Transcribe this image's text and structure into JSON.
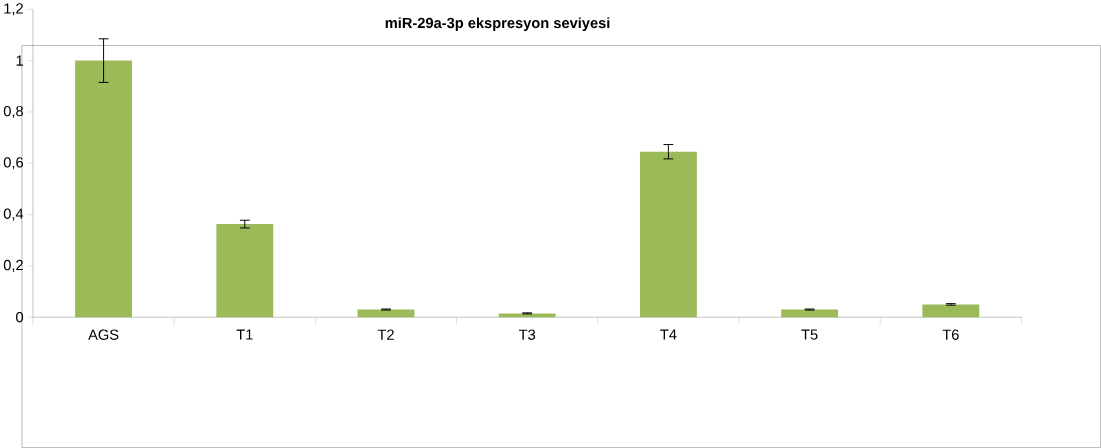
{
  "chart_data": {
    "type": "bar",
    "title": "miR-29a-3p  ekspresyon seviyesi",
    "categories": [
      "AGS",
      "T1",
      "T2",
      "T3",
      "T4",
      "T5",
      "T6"
    ],
    "values": [
      1.0,
      0.363,
      0.03,
      0.015,
      0.645,
      0.03,
      0.05
    ],
    "errors": [
      0.085,
      0.015,
      0.002,
      0.002,
      0.028,
      0.002,
      0.003
    ],
    "color": "#9bbb59",
    "ylim": [
      0,
      1.2
    ],
    "yticks": [
      0,
      {
        "value": 0.2,
        "label": "0,2"
      },
      {
        "value": 0.4,
        "label": "0,4"
      },
      {
        "value": 0.6,
        "label": "0,6"
      },
      {
        "value": 0.8,
        "label": "0,8"
      },
      1,
      {
        "value": 1.2,
        "label": "1,2"
      }
    ]
  }
}
